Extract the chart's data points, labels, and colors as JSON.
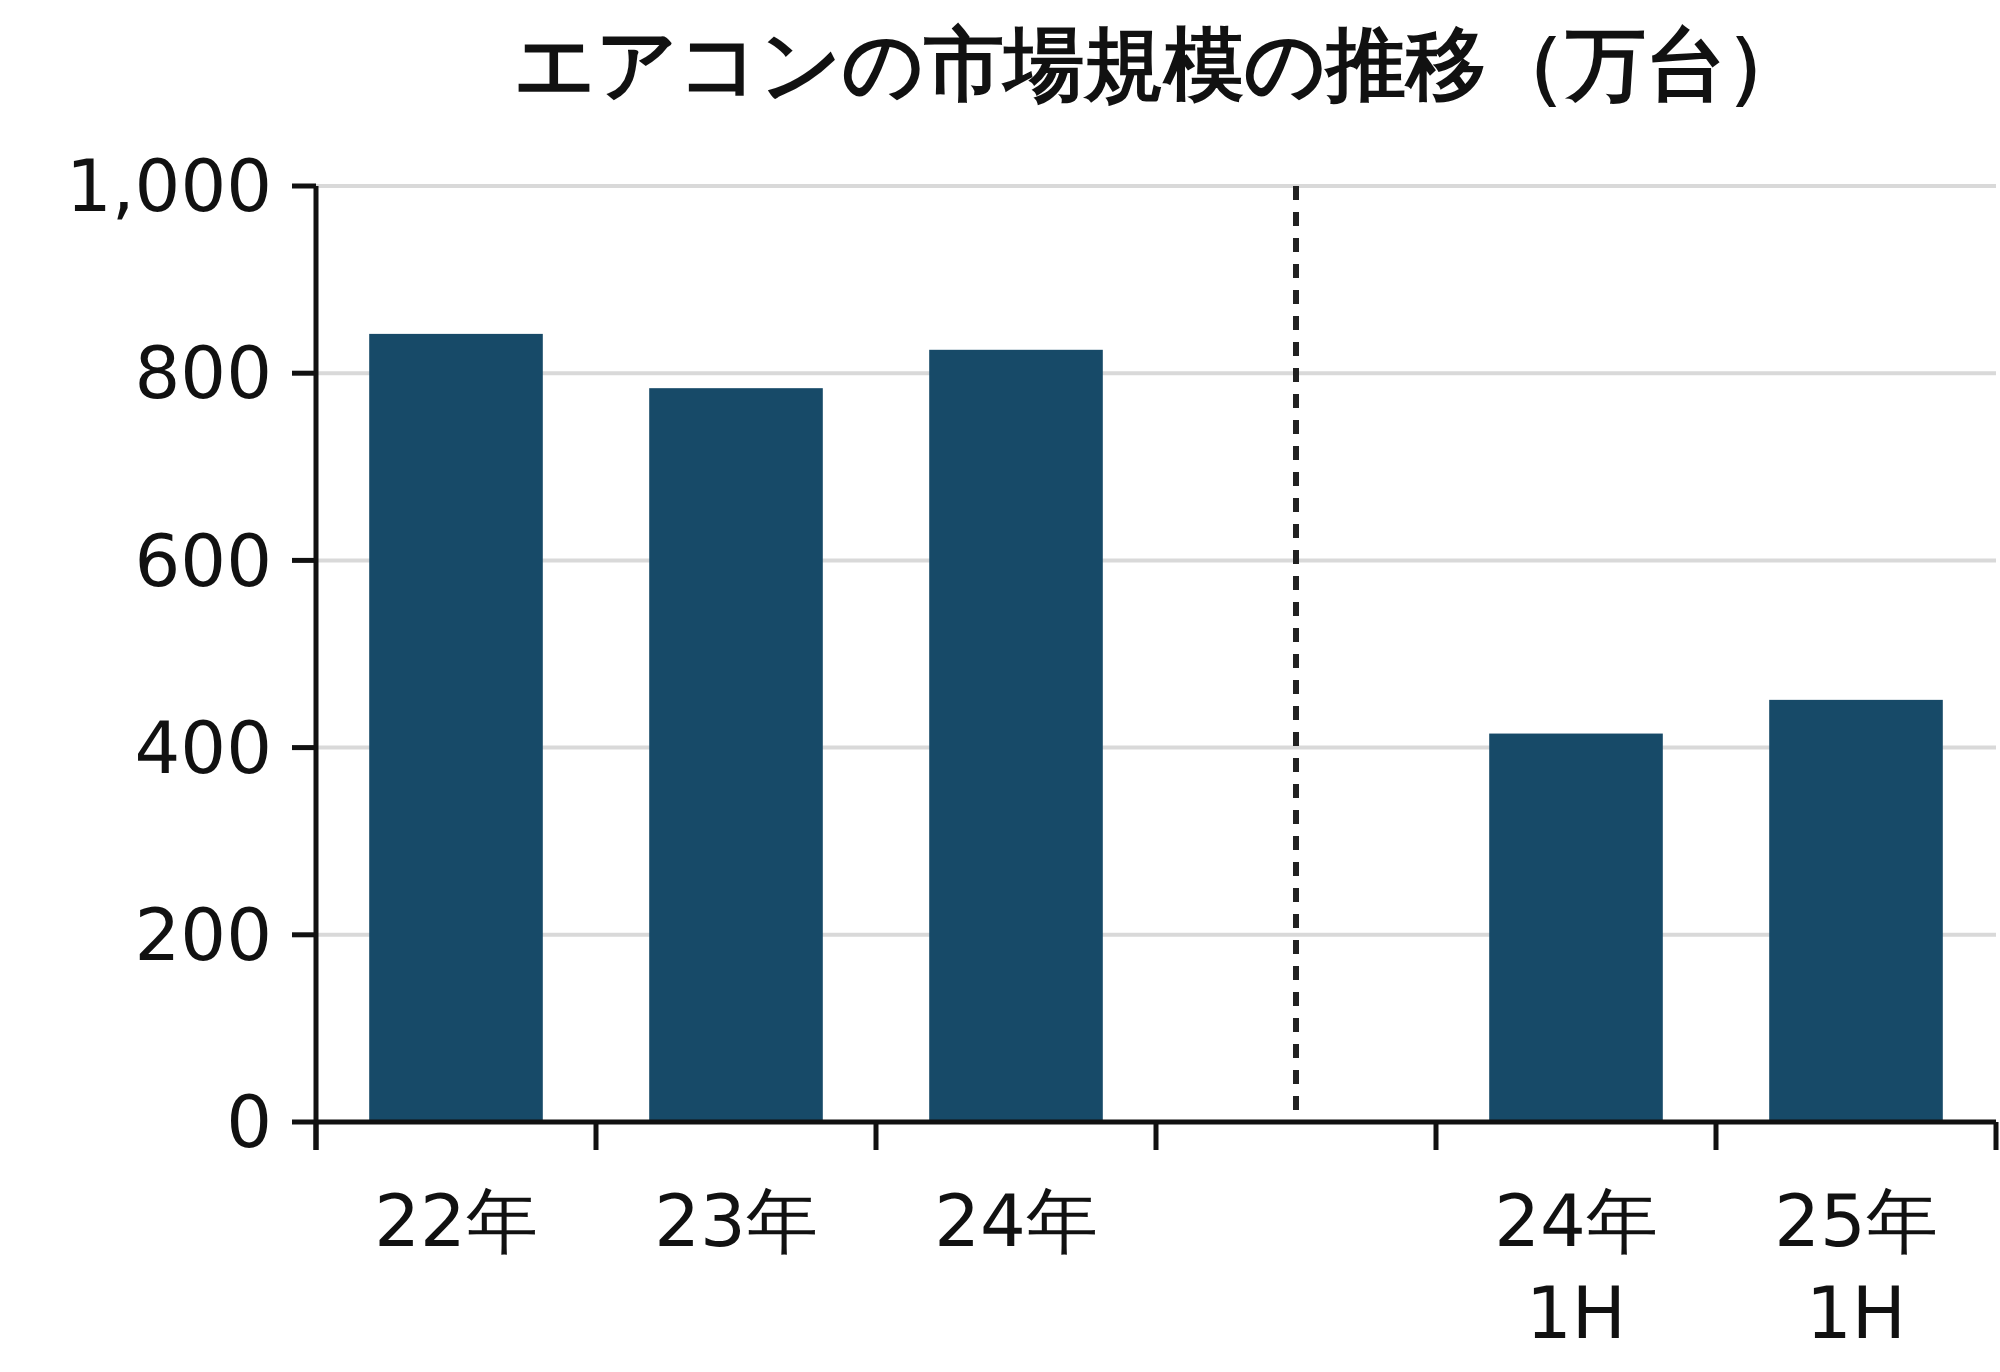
{
  "chart_data": {
    "type": "bar",
    "title": "エアコンの市場規模の推移（万台）",
    "categories": [
      "22年",
      "23年",
      "24年",
      null,
      "24年\n1H",
      "25年\n1H"
    ],
    "values": [
      842,
      784,
      825,
      null,
      415,
      451
    ],
    "color": "#174a68",
    "ylim": [
      0,
      1000
    ],
    "yticks": [
      0,
      200,
      400,
      600,
      800,
      {
        "value": 1000,
        "label": "1,000"
      }
    ],
    "grid": "y"
  }
}
